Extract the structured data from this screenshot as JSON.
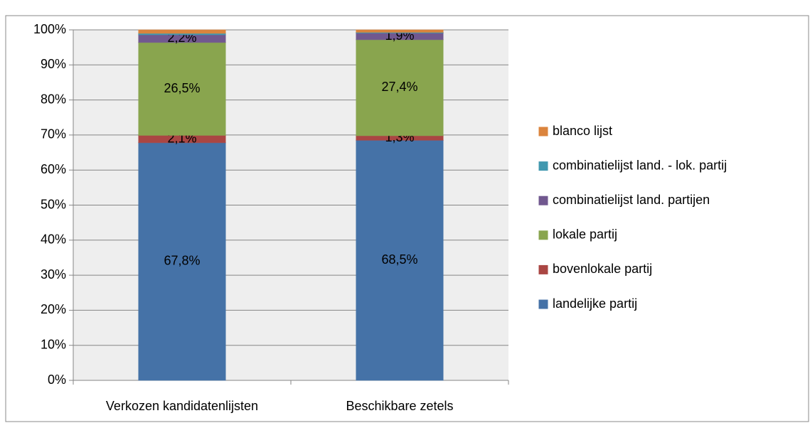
{
  "chart_data": {
    "type": "stacked_bar",
    "categories": [
      "Verkozen kandidatenlijsten",
      "Beschikbare zetels"
    ],
    "series": [
      {
        "name": "landelijke partij",
        "color": "#4572a7",
        "values": [
          67.8,
          68.5
        ],
        "value_labels": [
          "67,8%",
          "68,5%"
        ]
      },
      {
        "name": "bovenlokale partij",
        "color": "#aa4643",
        "values": [
          2.1,
          1.3
        ],
        "value_labels": [
          "2,1%",
          "1,3%"
        ]
      },
      {
        "name": "lokale partij",
        "color": "#89a54e",
        "values": [
          26.5,
          27.4
        ],
        "value_labels": [
          "26,5%",
          "27,4%"
        ]
      },
      {
        "name": "combinatielijst land. partijen",
        "color": "#71588f",
        "values": [
          2.2,
          1.9
        ],
        "value_labels": [
          "2,2%",
          "1,9%"
        ]
      },
      {
        "name": "combinatielijst land. - lok. partij",
        "color": "#4198af",
        "values": [
          0.4,
          0.2
        ]
      },
      {
        "name": "blanco lijst",
        "color": "#db843d",
        "values": [
          1.0,
          0.7
        ]
      }
    ],
    "ylim": [
      0,
      100
    ],
    "yticks": [
      {
        "value": 0,
        "label": "0%"
      },
      {
        "value": 10,
        "label": "10%"
      },
      {
        "value": 20,
        "label": "20%"
      },
      {
        "value": 30,
        "label": "30%"
      },
      {
        "value": 40,
        "label": "40%"
      },
      {
        "value": 50,
        "label": "50%"
      },
      {
        "value": 60,
        "label": "60%"
      },
      {
        "value": 70,
        "label": "70%"
      },
      {
        "value": 80,
        "label": "80%"
      },
      {
        "value": 90,
        "label": "90%"
      },
      {
        "value": 100,
        "label": "100%"
      }
    ],
    "grid": true,
    "legend": "right"
  }
}
